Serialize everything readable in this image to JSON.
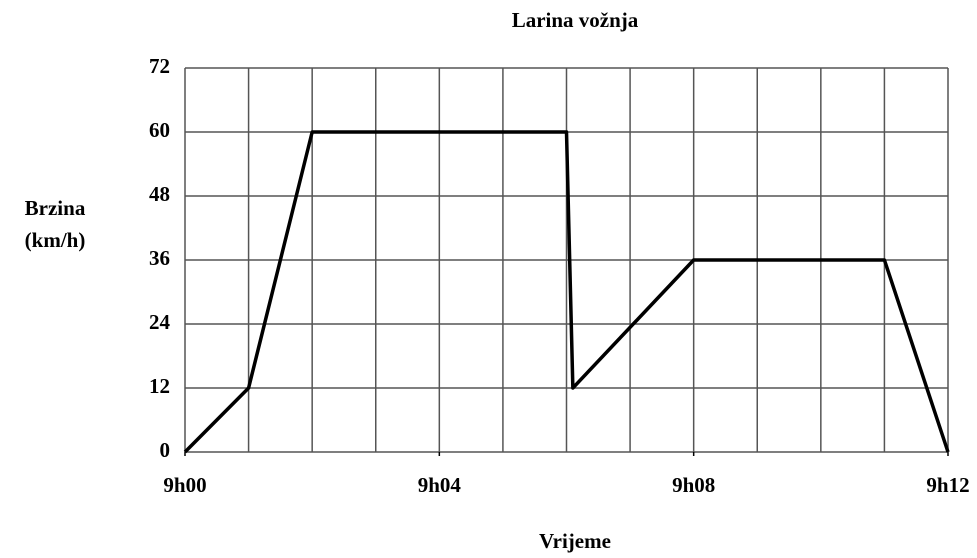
{
  "chart_data": {
    "type": "line",
    "title": "Larina vožnja",
    "x_label": "Vrijeme",
    "y_label": [
      "Brzina",
      "(km/h)"
    ],
    "x": [
      0,
      1,
      2,
      6,
      6.1,
      8,
      11,
      12
    ],
    "series": [
      {
        "color": "#000000",
        "values": [
          0,
          12,
          60,
          60,
          12,
          36,
          36,
          0
        ]
      }
    ],
    "xlim": [
      0,
      12
    ],
    "xticks": [
      {
        "value": 0,
        "label": "9h00"
      },
      {
        "value": 4,
        "label": "9h04"
      },
      {
        "value": 8,
        "label": "9h08"
      },
      {
        "value": 12,
        "label": "9h12"
      }
    ],
    "xgrid_step": 1,
    "ylim": [
      0,
      72
    ],
    "yticks": [
      0,
      12,
      24,
      36,
      48,
      60,
      72
    ],
    "grid": true
  }
}
